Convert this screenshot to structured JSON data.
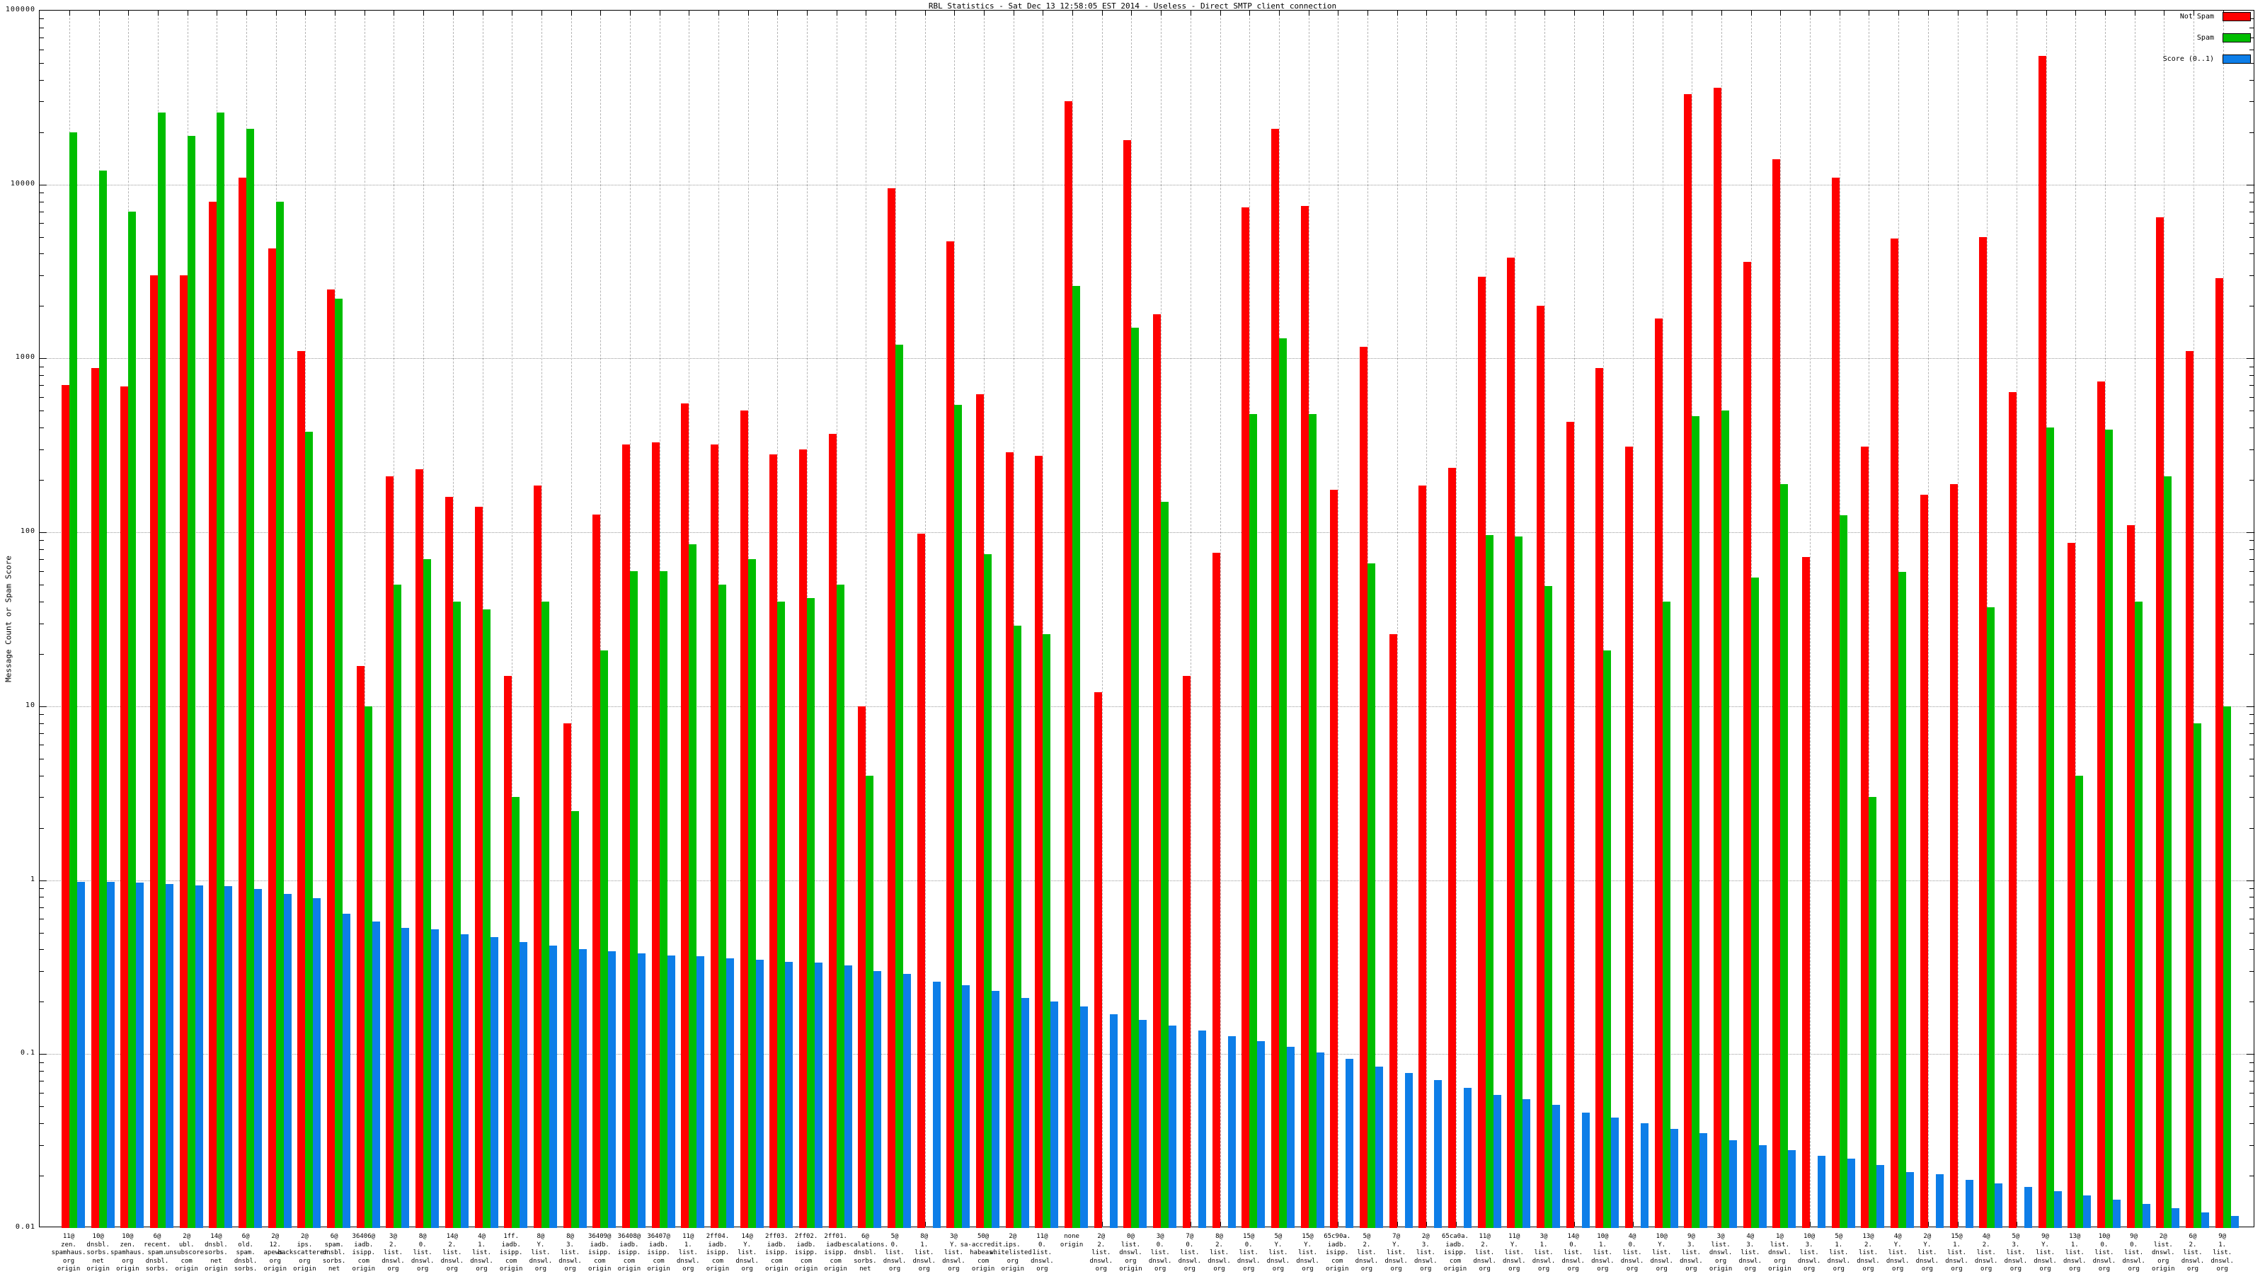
{
  "title": "RBL Statistics - Sat Dec 13 12:58:05 EST 2014 - Useless - Direct SMTP client connection",
  "y_axis": {
    "label": "Message Count or Spam Score",
    "tick_labels": [
      "100000",
      "10000",
      "1000",
      "100",
      "10",
      "1",
      "0.1",
      "0.01"
    ]
  },
  "legend": {
    "items": [
      {
        "label": "Not Spam",
        "color": "#ff0000"
      },
      {
        "label": "Spam",
        "color": "#00be00"
      },
      {
        "label": "Score (0..1)",
        "color": "#0d7ee8"
      }
    ]
  },
  "colors": {
    "not_spam": "#ff0000",
    "spam": "#00be00",
    "score": "#0d7ee8",
    "grid": "#9a9a9a"
  },
  "chart_data": {
    "type": "bar",
    "scale": "log",
    "ylim": [
      0.01,
      100000
    ],
    "grid": true,
    "legend_position": "top-right",
    "title": "RBL Statistics - Sat Dec 13 12:58:05 EST 2014 - Useless - Direct SMTP client connection",
    "ylabel": "Message Count or Spam Score",
    "series_names": [
      "Not Spam",
      "Spam",
      "Score (0..1)"
    ],
    "groups": [
      {
        "label": [
          "11@",
          "zen.",
          "spamhaus.",
          "org",
          "origin"
        ],
        "not_spam": 700,
        "spam": 20000,
        "score": 0.98
      },
      {
        "label": [
          "10@",
          "dnsbl.",
          "sorbs.",
          "net",
          "origin"
        ],
        "not_spam": 880,
        "spam": 12000,
        "score": 0.98
      },
      {
        "label": [
          "10@",
          "zen.",
          "spamhaus.",
          "org",
          "origin"
        ],
        "not_spam": 690,
        "spam": 7000,
        "score": 0.97
      },
      {
        "label": [
          "6@",
          "recent.",
          "spam.",
          "dnsbl.",
          "sorbs.",
          "net",
          "origin"
        ],
        "not_spam": 3000,
        "spam": 26000,
        "score": 0.95
      },
      {
        "label": [
          "2@",
          "ubl.",
          "unsubscore.",
          "com",
          "origin"
        ],
        "not_spam": 3000,
        "spam": 19000,
        "score": 0.93
      },
      {
        "label": [
          "14@",
          "dnsbl.",
          "sorbs.",
          "net",
          "origin"
        ],
        "not_spam": 8000,
        "spam": 26000,
        "score": 0.92
      },
      {
        "label": [
          "6@",
          "old.",
          "spam.",
          "dnsbl.",
          "sorbs.",
          "net",
          "origin"
        ],
        "not_spam": 11000,
        "spam": 21000,
        "score": 0.89
      },
      {
        "label": [
          "2@",
          "12.",
          "apews.",
          "org",
          "origin"
        ],
        "not_spam": 4300,
        "spam": 8000,
        "score": 0.83
      },
      {
        "label": [
          "2@",
          "ips.",
          "backscatterer.",
          "org",
          "origin"
        ],
        "not_spam": 1100,
        "spam": 380,
        "score": 0.79
      },
      {
        "label": [
          "6@",
          "spam.",
          "dnsbl.",
          "sorbs.",
          "net",
          "origin"
        ],
        "not_spam": 2500,
        "spam": 2200,
        "score": 0.64
      },
      {
        "label": [
          "36406@",
          "iadb.",
          "isipp.",
          "com",
          "origin"
        ],
        "not_spam": 17,
        "spam": 10,
        "score": 0.58
      },
      {
        "label": [
          "3@",
          "2.",
          "list.",
          "dnswl.",
          "org",
          "origin"
        ],
        "not_spam": 210,
        "spam": 50,
        "score": 0.53
      },
      {
        "label": [
          "8@",
          "0.",
          "list.",
          "dnswl.",
          "org",
          "origin"
        ],
        "not_spam": 230,
        "spam": 70,
        "score": 0.52
      },
      {
        "label": [
          "14@",
          "2.",
          "list.",
          "dnswl.",
          "org",
          "origin"
        ],
        "not_spam": 160,
        "spam": 40,
        "score": 0.49
      },
      {
        "label": [
          "4@",
          "1.",
          "list.",
          "dnswl.",
          "org",
          "origin"
        ],
        "not_spam": 140,
        "spam": 36,
        "score": 0.47
      },
      {
        "label": [
          "1ff.",
          "iadb.",
          "isipp.",
          "com",
          "origin"
        ],
        "not_spam": 15,
        "spam": 3,
        "score": 0.44
      },
      {
        "label": [
          "8@",
          "Y.",
          "list.",
          "dnswl.",
          "org",
          "origin"
        ],
        "not_spam": 185,
        "spam": 40,
        "score": 0.42
      },
      {
        "label": [
          "8@",
          "3.",
          "list.",
          "dnswl.",
          "org",
          "origin"
        ],
        "not_spam": 8,
        "spam": 2.5,
        "score": 0.4
      },
      {
        "label": [
          "36409@",
          "iadb.",
          "isipp.",
          "com",
          "origin"
        ],
        "not_spam": 126,
        "spam": 21,
        "score": 0.39
      },
      {
        "label": [
          "36408@",
          "iadb.",
          "isipp.",
          "com",
          "origin"
        ],
        "not_spam": 320,
        "spam": 60,
        "score": 0.38
      },
      {
        "label": [
          "36407@",
          "iadb.",
          "isipp.",
          "com",
          "origin"
        ],
        "not_spam": 330,
        "spam": 60,
        "score": 0.37
      },
      {
        "label": [
          "11@",
          "1.",
          "list.",
          "dnswl.",
          "org",
          "origin"
        ],
        "not_spam": 550,
        "spam": 85,
        "score": 0.365
      },
      {
        "label": [
          "2ff04.",
          "iadb.",
          "isipp.",
          "com",
          "origin"
        ],
        "not_spam": 320,
        "spam": 50,
        "score": 0.355
      },
      {
        "label": [
          "14@",
          "Y.",
          "list.",
          "dnswl.",
          "org",
          "origin"
        ],
        "not_spam": 500,
        "spam": 70,
        "score": 0.35
      },
      {
        "label": [
          "2ff03.",
          "iadb.",
          "isipp.",
          "com",
          "origin"
        ],
        "not_spam": 280,
        "spam": 40,
        "score": 0.34
      },
      {
        "label": [
          "2ff02.",
          "iadb.",
          "isipp.",
          "com",
          "origin"
        ],
        "not_spam": 300,
        "spam": 42,
        "score": 0.335
      },
      {
        "label": [
          "2ff01.",
          "iadb.",
          "isipp.",
          "com",
          "origin"
        ],
        "not_spam": 370,
        "spam": 50,
        "score": 0.325
      },
      {
        "label": [
          "6@",
          "escalations.",
          "dnsbl.",
          "sorbs.",
          "net",
          "origin"
        ],
        "not_spam": 10,
        "spam": 4,
        "score": 0.3
      },
      {
        "label": [
          "5@",
          "0.",
          "list.",
          "dnswl.",
          "org",
          "origin"
        ],
        "not_spam": 9500,
        "spam": 1200,
        "score": 0.29
      },
      {
        "label": [
          "8@",
          "1.",
          "list.",
          "dnswl.",
          "org",
          "origin"
        ],
        "not_spam": 98,
        "spam": 0,
        "score": 0.26
      },
      {
        "label": [
          "3@",
          "Y.",
          "list.",
          "dnswl.",
          "org",
          "origin"
        ],
        "not_spam": 4700,
        "spam": 540,
        "score": 0.25
      },
      {
        "label": [
          "50@",
          "sa-accredit.",
          "habeas.",
          "com",
          "origin"
        ],
        "not_spam": 620,
        "spam": 75,
        "score": 0.23
      },
      {
        "label": [
          "2@",
          "ips.",
          "whitelisted.",
          "org",
          "origin"
        ],
        "not_spam": 290,
        "spam": 29,
        "score": 0.21
      },
      {
        "label": [
          "11@",
          "0.",
          "list.",
          "dnswl.",
          "org",
          "origin"
        ],
        "not_spam": 275,
        "spam": 26,
        "score": 0.2
      },
      {
        "label": [
          "none",
          "origin"
        ],
        "not_spam": 30000,
        "spam": 2600,
        "score": 0.187
      },
      {
        "label": [
          "2@",
          "2.",
          "list.",
          "dnswl.",
          "org",
          "origin"
        ],
        "not_spam": 12,
        "spam": 0,
        "score": 0.17
      },
      {
        "label": [
          "0@",
          "list.",
          "dnswl.",
          "org",
          "origin"
        ],
        "not_spam": 18000,
        "spam": 1500,
        "score": 0.157
      },
      {
        "label": [
          "3@",
          "0.",
          "list.",
          "dnswl.",
          "org",
          "origin"
        ],
        "not_spam": 1800,
        "spam": 150,
        "score": 0.146
      },
      {
        "label": [
          "7@",
          "0.",
          "list.",
          "dnswl.",
          "org",
          "origin"
        ],
        "not_spam": 15,
        "spam": 0,
        "score": 0.136
      },
      {
        "label": [
          "8@",
          "2.",
          "list.",
          "dnswl.",
          "org",
          "origin"
        ],
        "not_spam": 76,
        "spam": 0,
        "score": 0.127
      },
      {
        "label": [
          "15@",
          "0.",
          "list.",
          "dnswl.",
          "org",
          "origin"
        ],
        "not_spam": 7400,
        "spam": 480,
        "score": 0.119
      },
      {
        "label": [
          "5@",
          "Y.",
          "list.",
          "dnswl.",
          "org",
          "origin"
        ],
        "not_spam": 21000,
        "spam": 1300,
        "score": 0.11
      },
      {
        "label": [
          "15@",
          "Y.",
          "list.",
          "dnswl.",
          "org",
          "origin"
        ],
        "not_spam": 7500,
        "spam": 480,
        "score": 0.102
      },
      {
        "label": [
          "65c90a.",
          "iadb.",
          "isipp.",
          "com",
          "origin"
        ],
        "not_spam": 175,
        "spam": 0,
        "score": 0.094
      },
      {
        "label": [
          "5@",
          "2.",
          "list.",
          "dnswl.",
          "org",
          "origin"
        ],
        "not_spam": 1170,
        "spam": 66,
        "score": 0.085
      },
      {
        "label": [
          "7@",
          "Y.",
          "list.",
          "dnswl.",
          "org",
          "origin"
        ],
        "not_spam": 26,
        "spam": 0,
        "score": 0.078
      },
      {
        "label": [
          "2@",
          "3.",
          "list.",
          "dnswl.",
          "org",
          "origin"
        ],
        "not_spam": 185,
        "spam": 0,
        "score": 0.071
      },
      {
        "label": [
          "65ca0a.",
          "iadb.",
          "isipp.",
          "com",
          "origin"
        ],
        "not_spam": 235,
        "spam": 0,
        "score": 0.064
      },
      {
        "label": [
          "11@",
          "2.",
          "list.",
          "dnswl.",
          "org",
          "origin"
        ],
        "not_spam": 2950,
        "spam": 96,
        "score": 0.058
      },
      {
        "label": [
          "11@",
          "Y.",
          "list.",
          "dnswl.",
          "org",
          "origin"
        ],
        "not_spam": 3800,
        "spam": 95,
        "score": 0.055
      },
      {
        "label": [
          "3@",
          "1.",
          "list.",
          "dnswl.",
          "org",
          "origin"
        ],
        "not_spam": 2000,
        "spam": 49,
        "score": 0.051
      },
      {
        "label": [
          "14@",
          "0.",
          "list.",
          "dnswl.",
          "org",
          "origin"
        ],
        "not_spam": 430,
        "spam": 0,
        "score": 0.046
      },
      {
        "label": [
          "10@",
          "1.",
          "list.",
          "dnswl.",
          "org",
          "origin"
        ],
        "not_spam": 880,
        "spam": 21,
        "score": 0.043
      },
      {
        "label": [
          "4@",
          "0.",
          "list.",
          "dnswl.",
          "org",
          "origin"
        ],
        "not_spam": 310,
        "spam": 0,
        "score": 0.04
      },
      {
        "label": [
          "10@",
          "Y.",
          "list.",
          "dnswl.",
          "org",
          "origin"
        ],
        "not_spam": 1700,
        "spam": 40,
        "score": 0.037
      },
      {
        "label": [
          "9@",
          "3.",
          "list.",
          "dnswl.",
          "org",
          "origin"
        ],
        "not_spam": 33000,
        "spam": 465,
        "score": 0.035
      },
      {
        "label": [
          "3@",
          "list.",
          "dnswl.",
          "org",
          "origin"
        ],
        "not_spam": 36000,
        "spam": 500,
        "score": 0.032
      },
      {
        "label": [
          "4@",
          "3.",
          "list.",
          "dnswl.",
          "org",
          "origin"
        ],
        "not_spam": 3600,
        "spam": 55,
        "score": 0.03
      },
      {
        "label": [
          "1@",
          "list.",
          "dnswl.",
          "org",
          "origin"
        ],
        "not_spam": 14000,
        "spam": 190,
        "score": 0.028
      },
      {
        "label": [
          "10@",
          "3.",
          "list.",
          "dnswl.",
          "org",
          "origin"
        ],
        "not_spam": 72,
        "spam": 0,
        "score": 0.026
      },
      {
        "label": [
          "5@",
          "1.",
          "list.",
          "dnswl.",
          "org",
          "origin"
        ],
        "not_spam": 11000,
        "spam": 125,
        "score": 0.025
      },
      {
        "label": [
          "13@",
          "2.",
          "list.",
          "dnswl.",
          "org",
          "origin"
        ],
        "not_spam": 310,
        "spam": 3,
        "score": 0.023
      },
      {
        "label": [
          "4@",
          "Y.",
          "list.",
          "dnswl.",
          "org",
          "origin"
        ],
        "not_spam": 4900,
        "spam": 59,
        "score": 0.021
      },
      {
        "label": [
          "2@",
          "Y.",
          "list.",
          "dnswl.",
          "org",
          "origin"
        ],
        "not_spam": 165,
        "spam": 0,
        "score": 0.0204
      },
      {
        "label": [
          "15@",
          "1.",
          "list.",
          "dnswl.",
          "org",
          "origin"
        ],
        "not_spam": 190,
        "spam": 0,
        "score": 0.019
      },
      {
        "label": [
          "4@",
          "2.",
          "list.",
          "dnswl.",
          "org",
          "origin"
        ],
        "not_spam": 5000,
        "spam": 37,
        "score": 0.018
      },
      {
        "label": [
          "5@",
          "3.",
          "list.",
          "dnswl.",
          "org",
          "origin"
        ],
        "not_spam": 640,
        "spam": 0,
        "score": 0.0172
      },
      {
        "label": [
          "9@",
          "Y.",
          "list.",
          "dnswl.",
          "org",
          "origin"
        ],
        "not_spam": 55000,
        "spam": 400,
        "score": 0.0163
      },
      {
        "label": [
          "13@",
          "1.",
          "list.",
          "dnswl.",
          "org",
          "origin"
        ],
        "not_spam": 87,
        "spam": 4,
        "score": 0.0154
      },
      {
        "label": [
          "10@",
          "0.",
          "list.",
          "dnswl.",
          "org",
          "origin"
        ],
        "not_spam": 740,
        "spam": 390,
        "score": 0.0146
      },
      {
        "label": [
          "9@",
          "0.",
          "list.",
          "dnswl.",
          "org",
          "origin"
        ],
        "not_spam": 110,
        "spam": 40,
        "score": 0.0138
      },
      {
        "label": [
          "2@",
          "list.",
          "dnswl.",
          "org",
          "origin"
        ],
        "not_spam": 6500,
        "spam": 210,
        "score": 0.013
      },
      {
        "label": [
          "6@",
          "2.",
          "list.",
          "dnswl.",
          "org",
          "origin"
        ],
        "not_spam": 1100,
        "spam": 8,
        "score": 0.0123
      },
      {
        "label": [
          "9@",
          "1.",
          "list.",
          "dnswl.",
          "org",
          "origin"
        ],
        "not_spam": 2900,
        "spam": 10,
        "score": 0.0117
      }
    ]
  }
}
